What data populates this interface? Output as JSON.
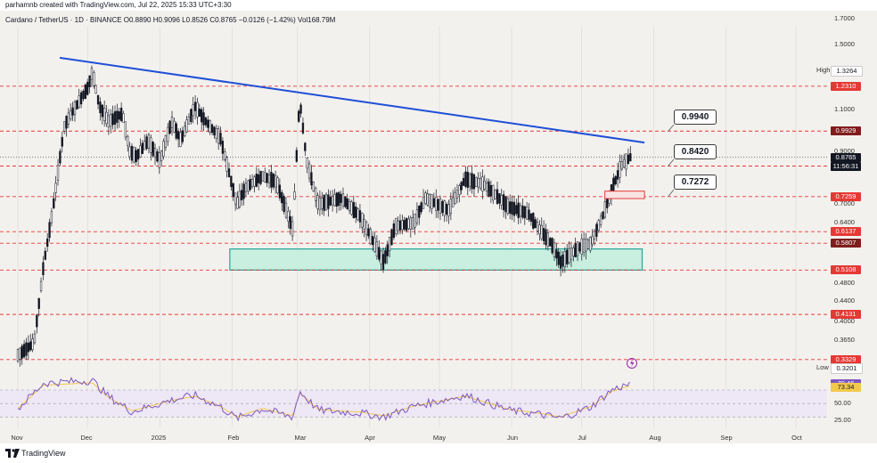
{
  "header": {
    "credit": "parhamnb created with TradingView.com, Jul 22, 2025 15:33 UTC+3:30",
    "symbol_line": "Cardano / TetherUS · 1D · BINANCE  O0.8890  H0.9096  L0.8526  C0.8765  −0.0126 (−1.42%)  Vol168.79M"
  },
  "footer": {
    "brand": "TradingView"
  },
  "colors": {
    "up": "#26a69a",
    "down": "#ef5350",
    "candle": "#131722",
    "trendline": "#1e4fd6",
    "level_line": "#e53935",
    "zone_fill": "#c9efe0",
    "zone_border": "#26a69a",
    "rsi": "#7e57c2",
    "rsi_ma": "#f2c94c",
    "bg": "#f3f1ee"
  },
  "price_scale_labels": [
    "1.7000",
    "1.5000",
    "1.1000",
    "0.9000",
    "0.7000",
    "0.6400",
    "0.4800",
    "0.4400",
    "0.4000",
    "0.3650"
  ],
  "high_label": {
    "text": "High",
    "value": "1.3264"
  },
  "low_label": {
    "text": "Low",
    "value": "0.3201"
  },
  "current_price": {
    "value": "0.8765",
    "countdown": "11:56:31"
  },
  "levels": [
    "1.2310",
    "0.9929",
    "0.8400",
    "0.7259",
    "0.6137",
    "0.5807",
    "0.5108",
    "0.4131",
    "0.3329"
  ],
  "callouts": [
    "0.9940",
    "0.8420",
    "0.7272"
  ],
  "rsi_labels": {
    "rsi": "79.46",
    "ma": "73.34",
    "scale": [
      "50.00",
      "25.00"
    ]
  },
  "months": [
    "Nov",
    "Dec",
    "2025",
    "Feb",
    "Mar",
    "Apr",
    "May",
    "Jun",
    "Jul",
    "Aug",
    "Sep",
    "Oct"
  ],
  "chart_data": {
    "type": "candlestick",
    "title": "Cardano / TetherUS · 1D · BINANCE",
    "scale": "log",
    "ylim": [
      0.3,
      1.8
    ],
    "ohlc_last": {
      "open": 0.889,
      "high": 0.9096,
      "low": 0.8526,
      "close": 0.8765
    },
    "price_path": [
      [
        "2024-11-01",
        0.34
      ],
      [
        "2024-11-08",
        0.36
      ],
      [
        "2024-11-12",
        0.52
      ],
      [
        "2024-11-16",
        0.68
      ],
      [
        "2024-11-21",
        1.02
      ],
      [
        "2024-11-24",
        1.08
      ],
      [
        "2024-12-01",
        1.22
      ],
      [
        "2024-12-03",
        1.32
      ],
      [
        "2024-12-06",
        1.12
      ],
      [
        "2024-12-10",
        1.04
      ],
      [
        "2024-12-16",
        1.08
      ],
      [
        "2024-12-19",
        0.9
      ],
      [
        "2024-12-22",
        0.88
      ],
      [
        "2024-12-27",
        0.95
      ],
      [
        "2025-01-01",
        0.86
      ],
      [
        "2025-01-06",
        1.04
      ],
      [
        "2025-01-10",
        0.95
      ],
      [
        "2025-01-16",
        1.12
      ],
      [
        "2025-01-20",
        1.05
      ],
      [
        "2025-01-27",
        0.96
      ],
      [
        "2025-02-03",
        0.7
      ],
      [
        "2025-02-07",
        0.76
      ],
      [
        "2025-02-14",
        0.8
      ],
      [
        "2025-02-20",
        0.78
      ],
      [
        "2025-02-27",
        0.62
      ],
      [
        "2025-03-02",
        1.16
      ],
      [
        "2025-03-05",
        0.86
      ],
      [
        "2025-03-10",
        0.7
      ],
      [
        "2025-03-20",
        0.72
      ],
      [
        "2025-03-28",
        0.66
      ],
      [
        "2025-04-03",
        0.58
      ],
      [
        "2025-04-07",
        0.53
      ],
      [
        "2025-04-12",
        0.63
      ],
      [
        "2025-04-20",
        0.64
      ],
      [
        "2025-04-25",
        0.72
      ],
      [
        "2025-05-05",
        0.68
      ],
      [
        "2025-05-12",
        0.79
      ],
      [
        "2025-05-20",
        0.77
      ],
      [
        "2025-05-31",
        0.69
      ],
      [
        "2025-06-08",
        0.67
      ],
      [
        "2025-06-13",
        0.62
      ],
      [
        "2025-06-18",
        0.58
      ],
      [
        "2025-06-22",
        0.53
      ],
      [
        "2025-06-30",
        0.57
      ],
      [
        "2025-07-05",
        0.58
      ],
      [
        "2025-07-10",
        0.66
      ],
      [
        "2025-07-14",
        0.75
      ],
      [
        "2025-07-18",
        0.84
      ],
      [
        "2025-07-22",
        0.8765
      ]
    ],
    "trendline": [
      [
        "2024-11-19",
        1.41
      ],
      [
        "2025-07-28",
        0.94
      ]
    ],
    "horizontal_levels": [
      1.231,
      0.9929,
      0.84,
      0.7259,
      0.6137,
      0.5807,
      0.5108,
      0.4131,
      0.3329
    ],
    "demand_zone": {
      "from": "2025-01-31",
      "to": "2025-07-27",
      "low": 0.5108,
      "high": 0.565
    },
    "supply_box": {
      "from": "2025-07-11",
      "to": "2025-07-28",
      "low": 0.719,
      "high": 0.745
    },
    "projection_callouts": [
      {
        "value": 0.994,
        "label": "0.9940"
      },
      {
        "value": 0.842,
        "label": "0.8420"
      },
      {
        "value": 0.7272,
        "label": "0.7272"
      }
    ],
    "rsi": {
      "ylim": [
        0,
        100
      ],
      "overbought": 70,
      "oversold": 30,
      "values": [
        [
          "2024-11-01",
          42
        ],
        [
          "2024-11-12",
          80
        ],
        [
          "2024-11-22",
          82
        ],
        [
          "2024-12-03",
          84
        ],
        [
          "2024-12-10",
          60
        ],
        [
          "2024-12-20",
          38
        ],
        [
          "2025-01-06",
          55
        ],
        [
          "2025-01-16",
          62
        ],
        [
          "2025-01-27",
          45
        ],
        [
          "2025-02-03",
          28
        ],
        [
          "2025-02-14",
          42
        ],
        [
          "2025-02-27",
          30
        ],
        [
          "2025-03-02",
          68
        ],
        [
          "2025-03-10",
          40
        ],
        [
          "2025-03-28",
          36
        ],
        [
          "2025-04-07",
          30
        ],
        [
          "2025-04-20",
          46
        ],
        [
          "2025-05-12",
          62
        ],
        [
          "2025-05-31",
          40
        ],
        [
          "2025-06-13",
          34
        ],
        [
          "2025-06-22",
          28
        ],
        [
          "2025-07-05",
          45
        ],
        [
          "2025-07-14",
          70
        ],
        [
          "2025-07-22",
          79.46
        ]
      ],
      "ma_last": 73.34
    },
    "x_ticks": [
      "Nov",
      "Dec",
      "2025",
      "Feb",
      "Mar",
      "Apr",
      "May",
      "Jun",
      "Jul",
      "Aug",
      "Sep",
      "Oct"
    ]
  }
}
